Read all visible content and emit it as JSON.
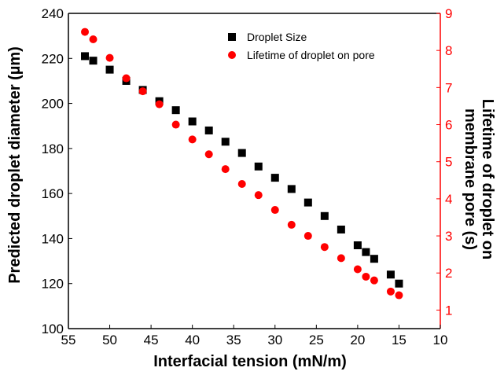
{
  "chart_data": {
    "type": "scatter",
    "xlabel": "Interfacial tension (mN/m)",
    "ylabel": "Predicted droplet diameter (µm)",
    "y2label_lines": [
      "Lifetime of droplet on",
      "membrane pore (s)"
    ],
    "xlim": [
      55,
      10
    ],
    "ylim": [
      100,
      240
    ],
    "y2lim": [
      0.5,
      9
    ],
    "x_ticks": [
      55,
      50,
      45,
      40,
      35,
      30,
      25,
      20,
      15,
      10
    ],
    "y_ticks": [
      100,
      120,
      140,
      160,
      180,
      200,
      220,
      240
    ],
    "y2_ticks": [
      1,
      2,
      3,
      4,
      5,
      6,
      7,
      8,
      9
    ],
    "legend_position": "top-right",
    "series": [
      {
        "name": "Droplet Size",
        "axis": "left",
        "marker": "square",
        "color": "#000000",
        "x": [
          53,
          52,
          50,
          48,
          46,
          44,
          42,
          40,
          38,
          36,
          34,
          32,
          30,
          28,
          26,
          24,
          22,
          20,
          19,
          18,
          16,
          15
        ],
        "y": [
          221,
          219,
          215,
          210,
          206,
          201,
          197,
          192,
          188,
          183,
          178,
          172,
          167,
          162,
          156,
          150,
          144,
          137,
          134,
          131,
          124,
          120
        ]
      },
      {
        "name": "Lifetime of droplet on pore",
        "axis": "right",
        "marker": "circle",
        "color": "#ff0000",
        "x": [
          53,
          52,
          50,
          48,
          46,
          44,
          42,
          40,
          38,
          36,
          34,
          32,
          30,
          28,
          26,
          24,
          22,
          20,
          19,
          18,
          16,
          15
        ],
        "y": [
          8.5,
          8.3,
          7.8,
          7.25,
          6.9,
          6.55,
          6.0,
          5.6,
          5.2,
          4.8,
          4.4,
          4.1,
          3.7,
          3.3,
          3.0,
          2.7,
          2.4,
          2.1,
          1.9,
          1.8,
          1.5,
          1.4
        ]
      }
    ]
  }
}
